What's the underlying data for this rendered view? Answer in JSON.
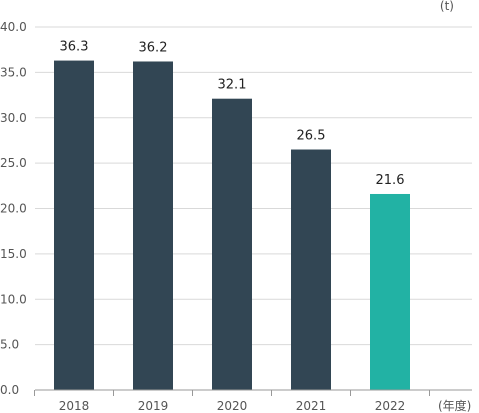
{
  "chart_data": {
    "type": "bar",
    "categories": [
      "2018",
      "2019",
      "2020",
      "2021",
      "2022"
    ],
    "values": [
      36.3,
      36.2,
      32.1,
      26.5,
      21.6
    ],
    "data_labels": [
      "36.3",
      "36.2",
      "32.1",
      "26.5",
      "21.6"
    ],
    "y_ticks": [
      "0.0",
      "5.0",
      "10.0",
      "15.0",
      "20.0",
      "25.0",
      "30.0",
      "35.0",
      "40.0"
    ],
    "ylim": [
      0,
      40
    ],
    "y_unit": "(t)",
    "x_unit": "(年度)",
    "grid": true,
    "colors": {
      "bar": "#324654",
      "highlight": "#22b2a4",
      "grid": "#d9d9d9",
      "axis": "#999999"
    },
    "highlight_index": 4
  }
}
